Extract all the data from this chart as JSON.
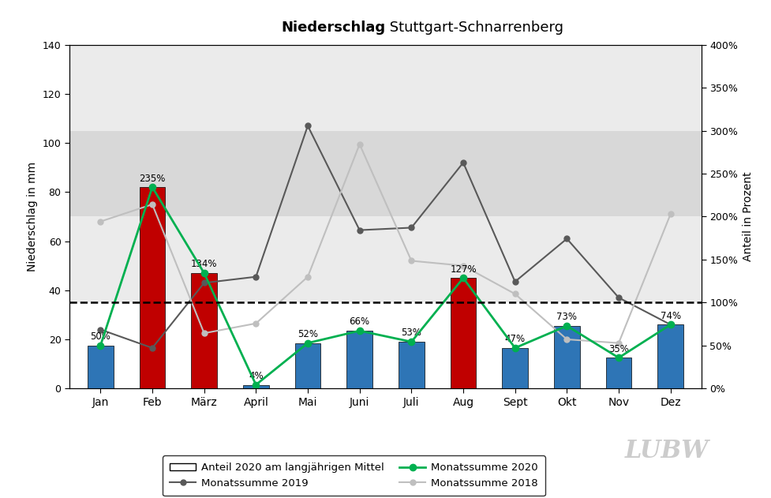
{
  "months": [
    "Jan",
    "Feb",
    "März",
    "April",
    "Mai",
    "Juni",
    "Juli",
    "Aug",
    "Sept",
    "Okt",
    "Nov",
    "Dez"
  ],
  "values_2020_mm": [
    17.5,
    82.0,
    47.0,
    1.5,
    18.5,
    23.5,
    19.0,
    45.0,
    16.5,
    25.5,
    12.5,
    26.0
  ],
  "percentages_2020": [
    50,
    235,
    134,
    4,
    52,
    66,
    53,
    127,
    47,
    73,
    35,
    74
  ],
  "bar_colors": [
    "#2e75b6",
    "#c00000",
    "#c00000",
    "#2e75b6",
    "#2e75b6",
    "#2e75b6",
    "#2e75b6",
    "#c00000",
    "#2e75b6",
    "#2e75b6",
    "#2e75b6",
    "#2e75b6"
  ],
  "values_2019_mm": [
    24.0,
    16.5,
    43.0,
    45.5,
    107.0,
    64.5,
    65.5,
    92.0,
    43.5,
    61.0,
    37.0,
    26.0
  ],
  "values_2018_mm": [
    68.0,
    75.0,
    22.5,
    26.5,
    45.5,
    99.5,
    52.0,
    50.0,
    38.5,
    20.0,
    18.5,
    71.0
  ],
  "mean_line_mm": 35.0,
  "ylim": [
    0,
    140
  ],
  "ylabel_left": "Niederschlag in mm",
  "ylabel_right": "Anteil in Prozent",
  "title_bold": "Niederschlag",
  "title_normal": " Stuttgart-Schnarrenberg",
  "legend_labels": [
    "Anteil 2020 am langjährigen Mittel",
    "Monatssumme 2019",
    "Monatssumme 2020",
    "Monatssumme 2018"
  ],
  "color_2019": "#595959",
  "color_2020_line": "#00b050",
  "color_2018": "#bfbfbf",
  "right_yticks_pct": [
    0,
    50,
    100,
    150,
    200,
    250,
    300,
    350,
    400
  ],
  "right_yticks_mm": [
    0,
    17.5,
    35.0,
    52.5,
    70.0,
    87.5,
    105.0,
    122.5,
    140.0
  ],
  "bg_bands": [
    {
      "ymin": 0,
      "ymax": 35,
      "color": "#ffffff"
    },
    {
      "ymin": 35,
      "ymax": 70,
      "color": "#ebebeb"
    },
    {
      "ymin": 70,
      "ymax": 105,
      "color": "#d8d8d8"
    },
    {
      "ymin": 105,
      "ymax": 140,
      "color": "#ebebeb"
    }
  ]
}
